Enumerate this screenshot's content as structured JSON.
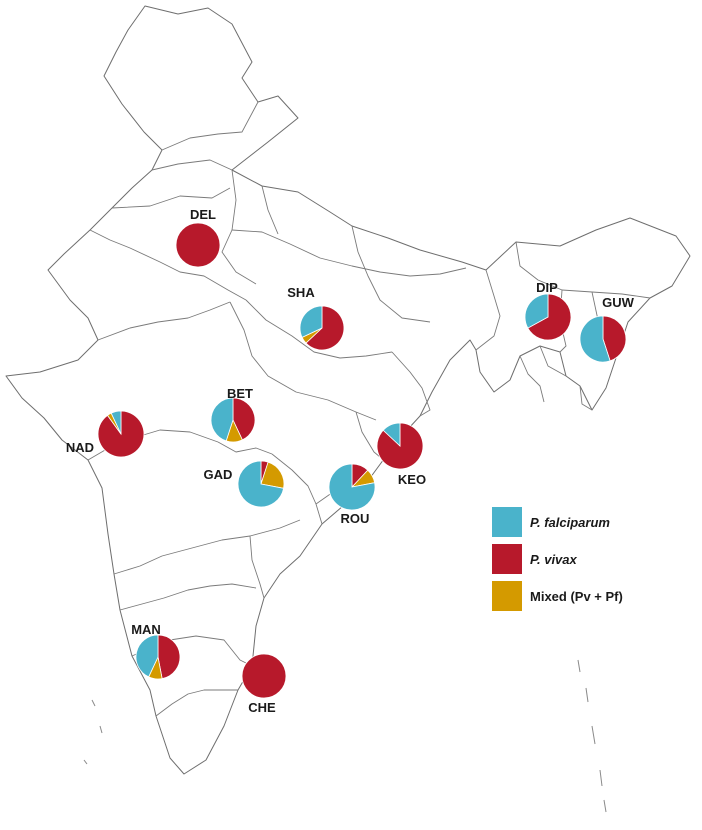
{
  "map": {
    "colors": {
      "pf": "#4ab3cb",
      "pv": "#b7192b",
      "mixed": "#d49a00"
    },
    "legend": [
      {
        "key": "pf",
        "label": "P. falciparum",
        "italic": true
      },
      {
        "key": "pv",
        "label": "P. vivax",
        "italic": true
      },
      {
        "key": "mixed",
        "label": "Mixed (Pv + Pf)",
        "italic": false
      }
    ],
    "sites": [
      {
        "code": "DEL",
        "pf": 0,
        "pv": 1.0,
        "mixed": 0
      },
      {
        "code": "SHA",
        "pf": 0.32,
        "pv": 0.63,
        "mixed": 0.05
      },
      {
        "code": "DIP",
        "pf": 0.33,
        "pv": 0.67,
        "mixed": 0
      },
      {
        "code": "GUW",
        "pf": 0.55,
        "pv": 0.45,
        "mixed": 0
      },
      {
        "code": "BET",
        "pf": 0.45,
        "pv": 0.43,
        "mixed": 0.12
      },
      {
        "code": "NAD",
        "pf": 0.07,
        "pv": 0.9,
        "mixed": 0.03
      },
      {
        "code": "GAD",
        "pf": 0.72,
        "pv": 0.05,
        "mixed": 0.23
      },
      {
        "code": "KEO",
        "pf": 0.13,
        "pv": 0.87,
        "mixed": 0
      },
      {
        "code": "ROU",
        "pf": 0.78,
        "pv": 0.12,
        "mixed": 0.1
      },
      {
        "code": "MAN",
        "pf": 0.43,
        "pv": 0.47,
        "mixed": 0.1
      },
      {
        "code": "CHE",
        "pf": 0,
        "pv": 1.0,
        "mixed": 0
      }
    ]
  }
}
